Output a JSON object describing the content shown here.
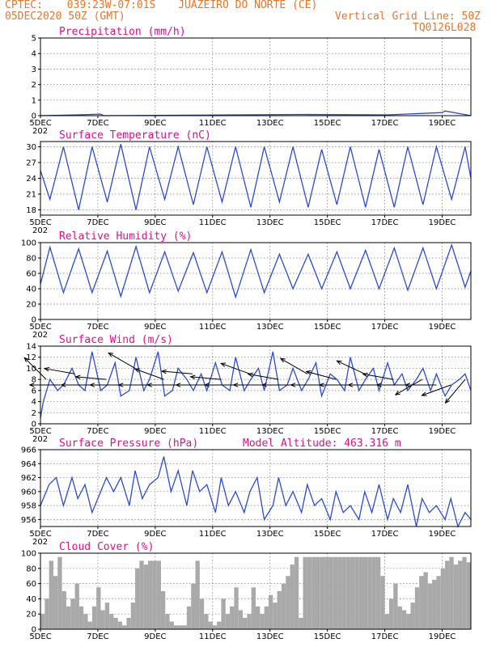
{
  "header": {
    "org": "CPTEC:",
    "coords": "039:23W-07:01S",
    "location": "JUAZEIRO DO NORTE (CE)",
    "run": "05DEC2020 50Z (GMT)",
    "grid_note": "Vertical Grid Line: 50Z",
    "model_code": "TQ0126L028"
  },
  "x_ticks": [
    "5DEC",
    "7DEC",
    "9DEC",
    "11DEC",
    "13DEC",
    "15DEC",
    "17DEC",
    "19DEC"
  ],
  "x_tick_partial": "202",
  "colors": {
    "series": "#2a4bd8",
    "title": "#e0108a",
    "header": "#e8762b",
    "cloud": "#a9a9a9"
  },
  "chart_data": [
    {
      "type": "line",
      "title": "Precipitation (mm/h)",
      "ylim": [
        0,
        5
      ],
      "yticks": [
        "0",
        "1",
        "2",
        "3",
        "4",
        "5"
      ],
      "grid": true,
      "series": [
        {
          "x": [
            5.0,
            6.3,
            7.1,
            7.2,
            14.1,
            17.1,
            19.0,
            19.1,
            20.0
          ],
          "values": [
            0,
            0.05,
            0.1,
            0,
            0.08,
            0.05,
            0.2,
            0.3,
            0
          ]
        }
      ]
    },
    {
      "type": "line",
      "title": "Surface Temperature (nC)",
      "ylim": [
        17,
        31
      ],
      "yticks": [
        "18",
        "21",
        "24",
        "27",
        "30"
      ],
      "grid": true,
      "series": [
        {
          "x": [
            5.0,
            5.33,
            5.8,
            6.33,
            6.8,
            7.33,
            7.8,
            8.33,
            8.8,
            9.33,
            9.8,
            10.33,
            10.8,
            11.33,
            11.8,
            12.33,
            12.8,
            13.33,
            13.8,
            14.33,
            14.8,
            15.33,
            15.8,
            16.33,
            16.8,
            17.33,
            17.8,
            18.33,
            18.8,
            19.33,
            19.8,
            20.0
          ],
          "values": [
            25.5,
            20,
            30,
            18,
            30,
            19.5,
            30.5,
            18,
            30,
            20,
            30,
            19,
            30,
            19.5,
            30,
            18.5,
            30,
            19.5,
            30,
            18.5,
            29.5,
            19,
            30,
            18.5,
            29.5,
            18.5,
            30,
            19,
            30,
            20,
            30,
            24
          ]
        }
      ]
    },
    {
      "type": "line",
      "title": "Relative Humidity (%)",
      "ylim": [
        0,
        100
      ],
      "yticks": [
        "0",
        "20",
        "40",
        "60",
        "80",
        "100"
      ],
      "grid": true,
      "series": [
        {
          "x": [
            5.0,
            5.33,
            5.8,
            6.33,
            6.8,
            7.33,
            7.8,
            8.33,
            8.8,
            9.33,
            9.8,
            10.33,
            10.8,
            11.33,
            11.8,
            12.33,
            12.8,
            13.33,
            13.8,
            14.33,
            14.8,
            15.33,
            15.8,
            16.33,
            16.8,
            17.33,
            17.8,
            18.33,
            18.8,
            19.33,
            19.8,
            20.0
          ],
          "values": [
            46,
            94,
            35,
            92,
            35,
            89,
            30,
            95,
            35,
            88,
            37,
            87,
            35,
            88,
            29,
            91,
            35,
            85,
            40,
            85,
            40,
            88,
            40,
            90,
            40,
            93,
            38,
            93,
            40,
            97,
            42,
            63
          ]
        }
      ]
    },
    {
      "type": "line",
      "title": "Surface Wind (m/s)",
      "ylim": [
        0,
        14
      ],
      "yticks": [
        "0",
        "2",
        "4",
        "6",
        "8",
        "10",
        "12",
        "14"
      ],
      "grid": true,
      "series": [
        {
          "x": [
            5.0,
            5.1,
            5.33,
            5.6,
            5.8,
            6.1,
            6.33,
            6.55,
            6.8,
            7.1,
            7.33,
            7.6,
            7.8,
            8.1,
            8.33,
            8.6,
            8.8,
            9.1,
            9.33,
            9.6,
            9.8,
            10.1,
            10.33,
            10.6,
            10.8,
            11.1,
            11.33,
            11.6,
            11.8,
            12.1,
            12.33,
            12.6,
            12.8,
            13.1,
            13.33,
            13.6,
            13.8,
            14.1,
            14.33,
            14.6,
            14.8,
            15.1,
            15.33,
            15.6,
            15.8,
            16.1,
            16.33,
            16.6,
            16.8,
            17.1,
            17.33,
            17.6,
            17.8,
            18.1,
            18.33,
            18.6,
            18.8,
            19.1,
            19.33,
            19.6,
            19.8,
            20.0
          ],
          "values": [
            1,
            4,
            8,
            6,
            7,
            10,
            7,
            6,
            13,
            6,
            7,
            11,
            5,
            6,
            12,
            6,
            8,
            13,
            5,
            6,
            10,
            8,
            6,
            9,
            6,
            11,
            7,
            6,
            12,
            6,
            8,
            10,
            6,
            13,
            6,
            7,
            10,
            6,
            8,
            11,
            5,
            9,
            8,
            6,
            12,
            6,
            8,
            10,
            6,
            11,
            7,
            9,
            6,
            8,
            10,
            6,
            9,
            5,
            7,
            8,
            9,
            6
          ]
        }
      ],
      "vectors": [
        {
          "day": 5.2,
          "speed": 8,
          "dir_deg": 135
        },
        {
          "day": 5.7,
          "speed": 7,
          "dir_deg": 90
        },
        {
          "day": 6.2,
          "speed": 9,
          "dir_deg": 100
        },
        {
          "day": 6.8,
          "speed": 7,
          "dir_deg": 90
        },
        {
          "day": 7.3,
          "speed": 8,
          "dir_deg": 95
        },
        {
          "day": 7.8,
          "speed": 7,
          "dir_deg": 90
        },
        {
          "day": 8.3,
          "speed": 10,
          "dir_deg": 120
        },
        {
          "day": 8.8,
          "speed": 7,
          "dir_deg": 90
        },
        {
          "day": 9.3,
          "speed": 8,
          "dir_deg": 110
        },
        {
          "day": 9.8,
          "speed": 7,
          "dir_deg": 90
        },
        {
          "day": 10.3,
          "speed": 9,
          "dir_deg": 95
        },
        {
          "day": 10.8,
          "speed": 7,
          "dir_deg": 90
        },
        {
          "day": 11.3,
          "speed": 8,
          "dir_deg": 95
        },
        {
          "day": 11.8,
          "speed": 7,
          "dir_deg": 90
        },
        {
          "day": 12.3,
          "speed": 9,
          "dir_deg": 110
        },
        {
          "day": 12.8,
          "speed": 7,
          "dir_deg": 90
        },
        {
          "day": 13.3,
          "speed": 8,
          "dir_deg": 100
        },
        {
          "day": 13.8,
          "speed": 7,
          "dir_deg": 90
        },
        {
          "day": 14.3,
          "speed": 9,
          "dir_deg": 120
        },
        {
          "day": 14.8,
          "speed": 7,
          "dir_deg": 90
        },
        {
          "day": 15.3,
          "speed": 8,
          "dir_deg": 105
        },
        {
          "day": 15.8,
          "speed": 7,
          "dir_deg": 90
        },
        {
          "day": 16.3,
          "speed": 9,
          "dir_deg": 115
        },
        {
          "day": 16.8,
          "speed": 7,
          "dir_deg": 90
        },
        {
          "day": 17.3,
          "speed": 8,
          "dir_deg": 100
        },
        {
          "day": 17.8,
          "speed": 7,
          "dir_deg": 90
        },
        {
          "day": 18.3,
          "speed": 8,
          "dir_deg": 60
        },
        {
          "day": 18.8,
          "speed": 7,
          "dir_deg": 90
        },
        {
          "day": 19.3,
          "speed": 7,
          "dir_deg": 70
        },
        {
          "day": 19.8,
          "speed": 8,
          "dir_deg": 40
        }
      ]
    },
    {
      "type": "line",
      "title": "Surface Pressure (hPa)",
      "annotation": "Model Altitude: 463.316 m",
      "ylim": [
        955,
        966
      ],
      "yticks": [
        "956",
        "958",
        "960",
        "962",
        "964",
        "966"
      ],
      "grid": true,
      "series": [
        {
          "x": [
            5.0,
            5.3,
            5.55,
            5.8,
            6.1,
            6.3,
            6.55,
            6.8,
            7.1,
            7.3,
            7.55,
            7.8,
            8.1,
            8.3,
            8.55,
            8.8,
            9.1,
            9.3,
            9.55,
            9.8,
            10.1,
            10.3,
            10.55,
            10.8,
            11.1,
            11.3,
            11.55,
            11.8,
            12.1,
            12.3,
            12.55,
            12.8,
            13.1,
            13.3,
            13.55,
            13.8,
            14.1,
            14.3,
            14.55,
            14.8,
            15.1,
            15.3,
            15.55,
            15.8,
            16.1,
            16.3,
            16.55,
            16.8,
            17.1,
            17.3,
            17.55,
            17.8,
            18.1,
            18.3,
            18.55,
            18.8,
            19.1,
            19.3,
            19.55,
            19.8,
            20.0
          ],
          "values": [
            958,
            961,
            962,
            958,
            962,
            959,
            961,
            957,
            960,
            962,
            960,
            962,
            958,
            963,
            959,
            961,
            962,
            965,
            960,
            963,
            958,
            963,
            960,
            961,
            957,
            962,
            958,
            960,
            957,
            960,
            962,
            956,
            958,
            962,
            958,
            960,
            957,
            961,
            958,
            959,
            956,
            960,
            957,
            958,
            956,
            960,
            957,
            961,
            956,
            959,
            957,
            961,
            955,
            959,
            957,
            958,
            956,
            959,
            955,
            957,
            956
          ]
        }
      ]
    },
    {
      "type": "area",
      "title": "Cloud Cover (%)",
      "ylim": [
        0,
        100
      ],
      "yticks": [
        "0",
        "20",
        "40",
        "60",
        "80",
        "100"
      ],
      "grid": true,
      "series": [
        {
          "x": [
            5.0,
            5.15,
            5.3,
            5.45,
            5.6,
            5.75,
            5.9,
            6.05,
            6.2,
            6.35,
            6.5,
            6.65,
            6.8,
            6.95,
            7.1,
            7.25,
            7.4,
            7.55,
            7.7,
            7.85,
            8.0,
            8.15,
            8.3,
            8.45,
            8.6,
            8.75,
            8.9,
            9.05,
            9.2,
            9.35,
            9.5,
            9.65,
            9.8,
            9.95,
            10.1,
            10.25,
            10.4,
            10.55,
            10.7,
            10.85,
            11.0,
            11.15,
            11.3,
            11.45,
            11.6,
            11.75,
            11.9,
            12.05,
            12.2,
            12.35,
            12.5,
            12.65,
            12.8,
            12.95,
            13.1,
            13.25,
            13.4,
            13.55,
            13.7,
            13.85,
            14.0,
            14.15,
            14.3,
            14.45,
            14.6,
            14.75,
            14.9,
            15.05,
            15.2,
            15.35,
            15.5,
            15.65,
            15.8,
            15.95,
            16.1,
            16.25,
            16.4,
            16.55,
            16.7,
            16.85,
            17.0,
            17.15,
            17.3,
            17.45,
            17.6,
            17.75,
            17.9,
            18.05,
            18.2,
            18.35,
            18.5,
            18.65,
            18.8,
            18.95,
            19.1,
            19.25,
            19.4,
            19.55,
            19.7,
            19.85,
            20.0
          ],
          "values": [
            20,
            40,
            90,
            70,
            95,
            50,
            30,
            40,
            60,
            30,
            20,
            10,
            30,
            55,
            25,
            35,
            20,
            15,
            10,
            5,
            15,
            35,
            80,
            90,
            85,
            90,
            90,
            90,
            50,
            20,
            10,
            5,
            5,
            5,
            30,
            60,
            90,
            40,
            20,
            10,
            5,
            10,
            40,
            20,
            30,
            55,
            25,
            15,
            20,
            55,
            30,
            20,
            30,
            45,
            35,
            50,
            60,
            70,
            85,
            95,
            15,
            95,
            95,
            95,
            95,
            95,
            95,
            95,
            95,
            95,
            95,
            95,
            95,
            95,
            95,
            95,
            95,
            95,
            95,
            70,
            20,
            40,
            60,
            30,
            25,
            20,
            35,
            55,
            70,
            75,
            60,
            65,
            70,
            80,
            90,
            95,
            85,
            90,
            95,
            88,
            92
          ]
        }
      ]
    }
  ]
}
